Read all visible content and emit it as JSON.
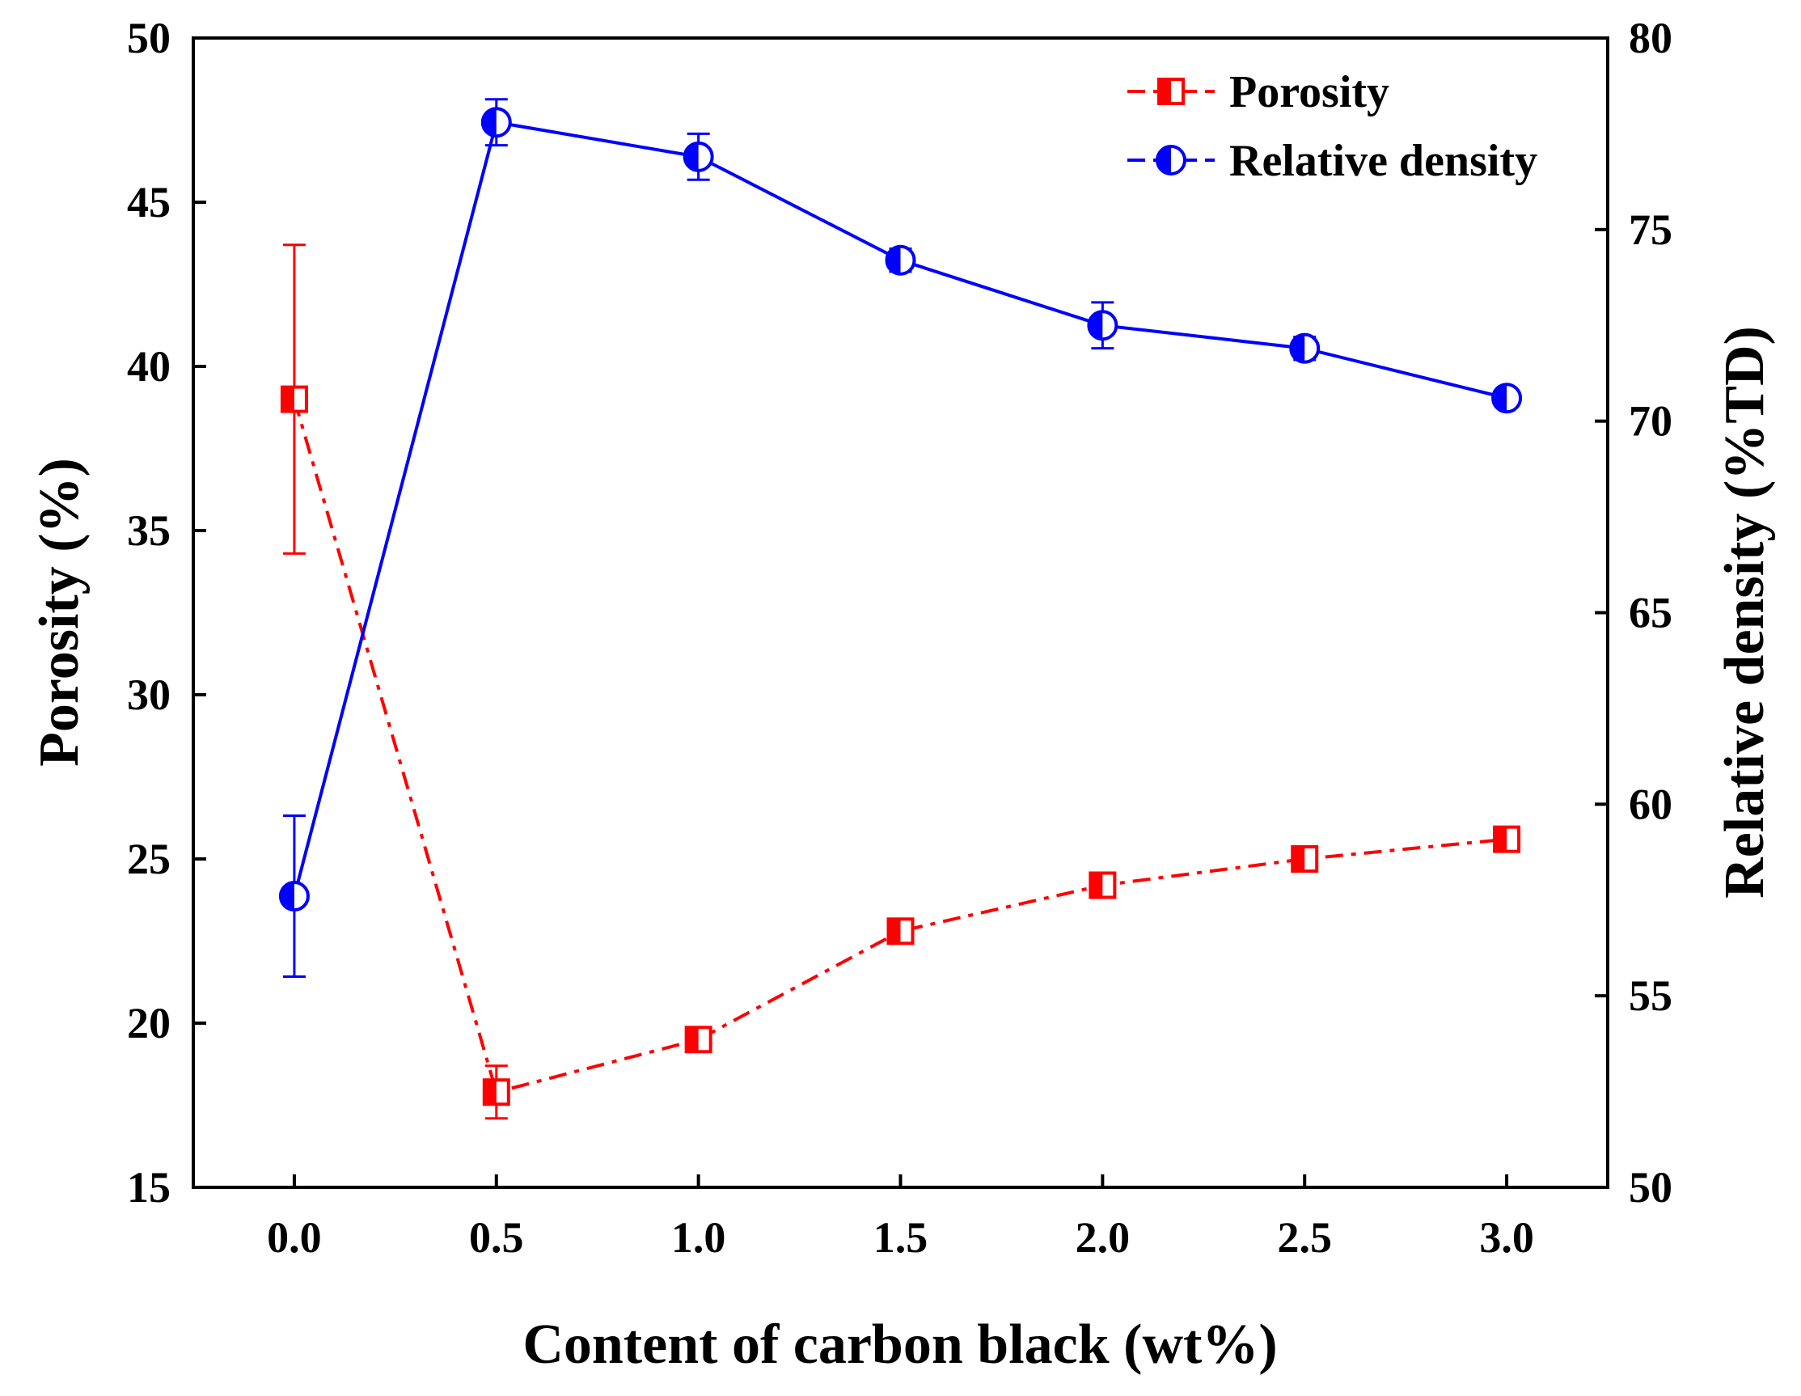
{
  "chart_data": {
    "type": "line",
    "xlabel": "Content of carbon black (wt%)",
    "ylabel_left": "Porosity (%)",
    "ylabel_right": "Relative density (%TD)",
    "x": [
      0.0,
      0.5,
      1.0,
      1.5,
      2.0,
      2.5,
      3.0
    ],
    "x_tick_labels": [
      "0.0",
      "0.5",
      "1.0",
      "1.5",
      "2.0",
      "2.5",
      "3.0"
    ],
    "xlim": [
      -0.25,
      3.25
    ],
    "ylim_left": [
      15,
      50
    ],
    "ylim_right": [
      50,
      80
    ],
    "y_ticks_left": [
      "15",
      "20",
      "25",
      "30",
      "35",
      "40",
      "45",
      "50"
    ],
    "y_ticks_right": [
      "50",
      "55",
      "60",
      "65",
      "70",
      "75",
      "80"
    ],
    "legend_position": "top-right",
    "series": [
      {
        "name": "Porosity",
        "axis": "left",
        "color": "#ff0000",
        "marker": "half-filled-square",
        "line_style": "dash-dot",
        "values": [
          39.0,
          17.9,
          19.5,
          22.8,
          24.2,
          25.0,
          25.6
        ],
        "errors": [
          4.7,
          0.8,
          0.3,
          0.3,
          0.3,
          0.3,
          0.3
        ]
      },
      {
        "name": "Relative density",
        "axis": "right",
        "color": "#0000ff",
        "marker": "half-filled-circle",
        "line_style": "solid",
        "values": [
          57.6,
          77.8,
          76.9,
          74.2,
          72.5,
          71.9,
          70.6
        ],
        "errors": [
          2.1,
          0.6,
          0.6,
          0.3,
          0.6,
          0.3,
          0.2
        ]
      }
    ]
  }
}
